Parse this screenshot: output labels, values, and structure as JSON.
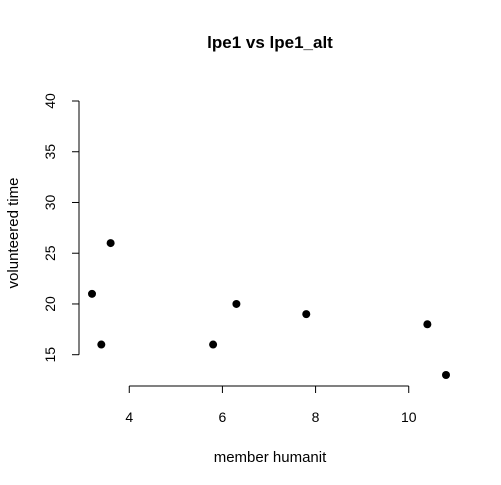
{
  "chart_data": {
    "type": "scatter",
    "title": "lpe1 vs lpe1_alt",
    "xlabel": "member humanit",
    "ylabel": "volunteered time",
    "x_ticks": [
      4,
      6,
      8,
      10
    ],
    "y_ticks": [
      15,
      20,
      25,
      30,
      35,
      40
    ],
    "xlim": [
      3.2,
      10.8
    ],
    "ylim": [
      13,
      40
    ],
    "grid": false,
    "points": [
      {
        "x": 3.2,
        "y": 21
      },
      {
        "x": 3.4,
        "y": 16
      },
      {
        "x": 3.6,
        "y": 26
      },
      {
        "x": 5.8,
        "y": 16
      },
      {
        "x": 6.3,
        "y": 20
      },
      {
        "x": 7.8,
        "y": 19
      },
      {
        "x": 10.4,
        "y": 18
      },
      {
        "x": 10.8,
        "y": 13
      }
    ],
    "marker_color": "#000000"
  }
}
